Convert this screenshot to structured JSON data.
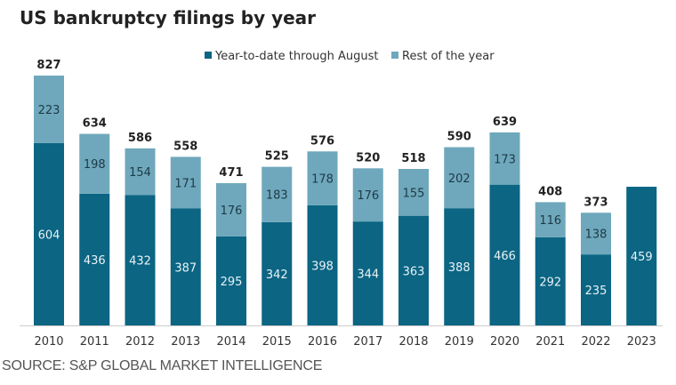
{
  "chart_data": {
    "type": "bar",
    "stacked": true,
    "title": "US bankruptcy filings by year",
    "xlabel": "",
    "ylabel": "",
    "categories": [
      "2010",
      "2011",
      "2012",
      "2013",
      "2014",
      "2015",
      "2016",
      "2017",
      "2018",
      "2019",
      "2020",
      "2021",
      "2022",
      "2023"
    ],
    "series": [
      {
        "name": "Year-to-date through August",
        "color": "#0b6583",
        "values": [
          604,
          436,
          432,
          387,
          295,
          342,
          398,
          344,
          363,
          388,
          466,
          292,
          235,
          459
        ]
      },
      {
        "name": "Rest of the year",
        "color": "#6fa8bc",
        "values": [
          223,
          198,
          154,
          171,
          176,
          183,
          178,
          176,
          155,
          202,
          173,
          116,
          138,
          null
        ]
      }
    ],
    "totals": [
      827,
      634,
      586,
      558,
      471,
      525,
      576,
      520,
      518,
      590,
      639,
      408,
      373,
      null
    ],
    "ylim": [
      0,
      827
    ],
    "grid": false,
    "legend": "top"
  },
  "source": "SOURCE: S&P GLOBAL MARKET INTELLIGENCE"
}
